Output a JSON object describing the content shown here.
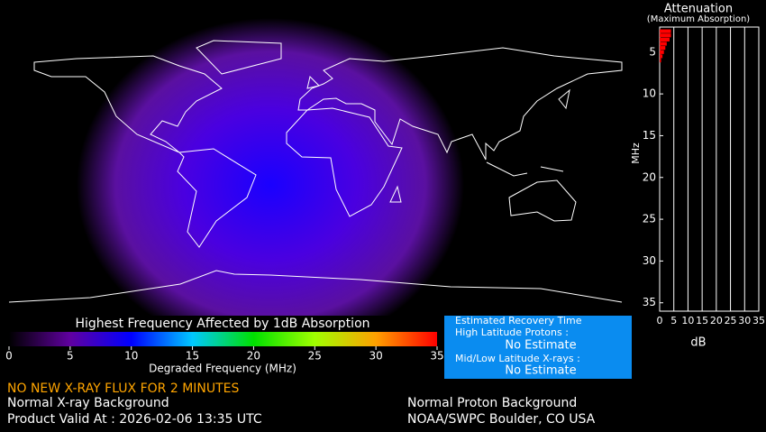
{
  "colorbar": {
    "title": "Highest Frequency Affected by 1dB Absorption",
    "label": "Degraded Frequency (MHz)",
    "lim": [
      0,
      35
    ],
    "ticks": [
      0,
      5,
      10,
      15,
      20,
      25,
      30,
      35
    ],
    "colors": [
      "#000000",
      "#6000a0",
      "#0000ff",
      "#00c8ff",
      "#00e000",
      "#a0ff00",
      "#ffa000",
      "#ff0000"
    ]
  },
  "chart_data": {
    "type": "bar",
    "orientation": "horizontal",
    "title": "Attenuation",
    "subtitle": "(Maximum Absorption)",
    "xlabel": "dB",
    "ylabel": "MHz",
    "frequencies": [
      2.5,
      3,
      3.5,
      4,
      4.5,
      5,
      5.5,
      6
    ],
    "values": [
      4,
      4,
      3.5,
      2.5,
      2,
      1.5,
      1,
      0.5
    ],
    "color": "#ff0000",
    "xlim": [
      0,
      35
    ],
    "xticks": [
      0,
      5,
      10,
      15,
      20,
      25,
      30,
      35
    ],
    "ylim": [
      2,
      36
    ],
    "yticks": [
      5,
      10,
      15,
      20,
      25,
      30,
      35
    ],
    "grid": true
  },
  "recovery": {
    "title": "Estimated Recovery Time",
    "protons_label": "High Latitude Protons :",
    "protons_value": "No Estimate",
    "xrays_label": "Mid/Low Latitude X-rays :",
    "xrays_value": "No Estimate"
  },
  "status": {
    "alert": "NO NEW X-RAY FLUX FOR 2 MINUTES",
    "xray": "Normal X-ray Background",
    "valid": "Product Valid At : 2026-02-06 13:35 UTC",
    "proton": "Normal Proton Background",
    "credit": "NOAA/SWPC Boulder, CO USA"
  }
}
